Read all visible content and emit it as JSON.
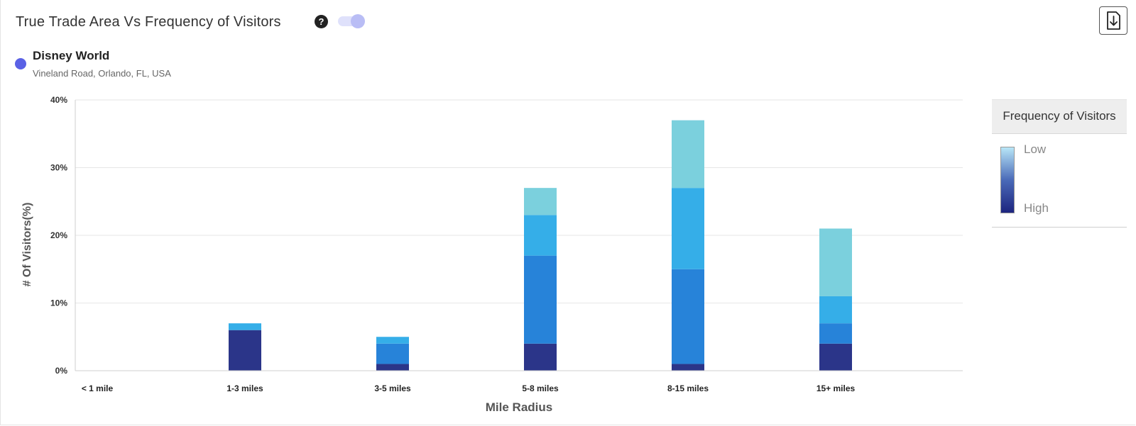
{
  "header": {
    "title": "True Trade Area Vs Frequency of Visitors",
    "help_icon": "question-circle-icon",
    "toggle_on": true,
    "download_icon": "download-file-icon"
  },
  "location": {
    "name": "Disney World",
    "address": "Vineland Road, Orlando, FL, USA",
    "color": "#5a61e5"
  },
  "legend": {
    "title": "Frequency of Visitors",
    "low_label": "Low",
    "high_label": "High"
  },
  "chart_data": {
    "type": "bar",
    "stacked": true,
    "categories": [
      "< 1 mile",
      "1-3 miles",
      "3-5 miles",
      "5-8 miles",
      "8-15 miles",
      "15+ miles"
    ],
    "series": [
      {
        "color": "#2b3589",
        "values": [
          0,
          6,
          1,
          4,
          1,
          4
        ]
      },
      {
        "color": "#2783d9",
        "values": [
          0,
          0,
          3,
          13,
          14,
          3
        ]
      },
      {
        "color": "#35aee8",
        "values": [
          0,
          1,
          1,
          6,
          12,
          4
        ]
      },
      {
        "color": "#7bd0dd",
        "values": [
          0,
          0,
          0,
          4,
          10,
          10
        ]
      }
    ],
    "xlabel": "Mile Radius",
    "ylabel": "# Of Visitors(%)",
    "ylim": [
      0,
      40
    ],
    "yticks": [
      "0%",
      "10%",
      "20%",
      "30%",
      "40%"
    ],
    "grid": true
  }
}
